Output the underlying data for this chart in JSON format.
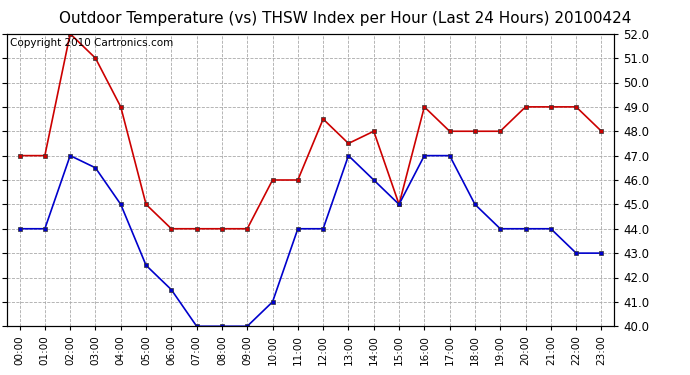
{
  "title": "Outdoor Temperature (vs) THSW Index per Hour (Last 24 Hours) 20100424",
  "copyright": "Copyright 2010 Cartronics.com",
  "hours": [
    "00:00",
    "01:00",
    "02:00",
    "03:00",
    "04:00",
    "05:00",
    "06:00",
    "07:00",
    "08:00",
    "09:00",
    "10:00",
    "11:00",
    "12:00",
    "13:00",
    "14:00",
    "15:00",
    "16:00",
    "17:00",
    "18:00",
    "19:00",
    "20:00",
    "21:00",
    "22:00",
    "23:00"
  ],
  "thsw": [
    47.0,
    47.0,
    52.0,
    51.0,
    49.0,
    45.0,
    44.0,
    44.0,
    44.0,
    44.0,
    46.0,
    46.0,
    48.5,
    47.5,
    48.0,
    45.0,
    49.0,
    48.0,
    48.0,
    48.0,
    49.0,
    49.0,
    49.0,
    48.0
  ],
  "temp": [
    44.0,
    44.0,
    47.0,
    46.5,
    45.0,
    42.5,
    41.5,
    40.0,
    40.0,
    40.0,
    41.0,
    44.0,
    44.0,
    47.0,
    46.0,
    45.0,
    47.0,
    47.0,
    45.0,
    44.0,
    44.0,
    44.0,
    43.0,
    43.0
  ],
  "thsw_color": "#cc0000",
  "temp_color": "#0000cc",
  "bg_color": "#ffffff",
  "plot_bg": "#ffffff",
  "grid_color": "#aaaaaa",
  "ylim_min": 40.0,
  "ylim_max": 52.0,
  "ytick_interval": 1.0,
  "title_fontsize": 11,
  "copyright_fontsize": 7.5,
  "tick_fontsize": 8.5,
  "xtick_fontsize": 7.5
}
